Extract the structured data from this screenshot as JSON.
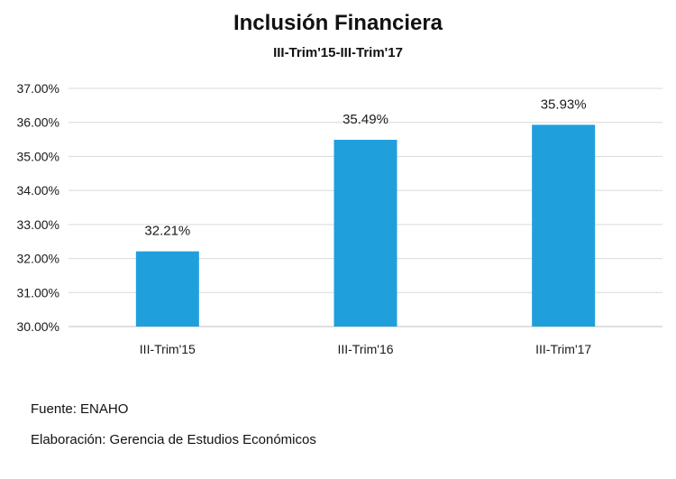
{
  "chart_data": {
    "type": "bar",
    "title": "Inclusión Financiera",
    "subtitle": "III-Trim'15-III-Trim'17",
    "categories": [
      "III-Trim'15",
      "III-Trim'16",
      "III-Trim'17"
    ],
    "values": [
      32.21,
      35.49,
      35.93
    ],
    "data_labels": [
      "32.21%",
      "35.49%",
      "35.93%"
    ],
    "ylim": [
      30,
      37
    ],
    "yticks": [
      30,
      31,
      32,
      33,
      34,
      35,
      36,
      37
    ],
    "ytick_labels": [
      "30.00%",
      "31.00%",
      "32.00%",
      "33.00%",
      "34.00%",
      "35.00%",
      "36.00%",
      "37.00%"
    ],
    "xlabel": "",
    "ylabel": "",
    "grid": true,
    "legend": "none",
    "bar_color": "#1fa0dc"
  },
  "footnotes": {
    "source": "Fuente:  ENAHO",
    "credit": "Elaboración: Gerencia de Estudios Económicos"
  }
}
